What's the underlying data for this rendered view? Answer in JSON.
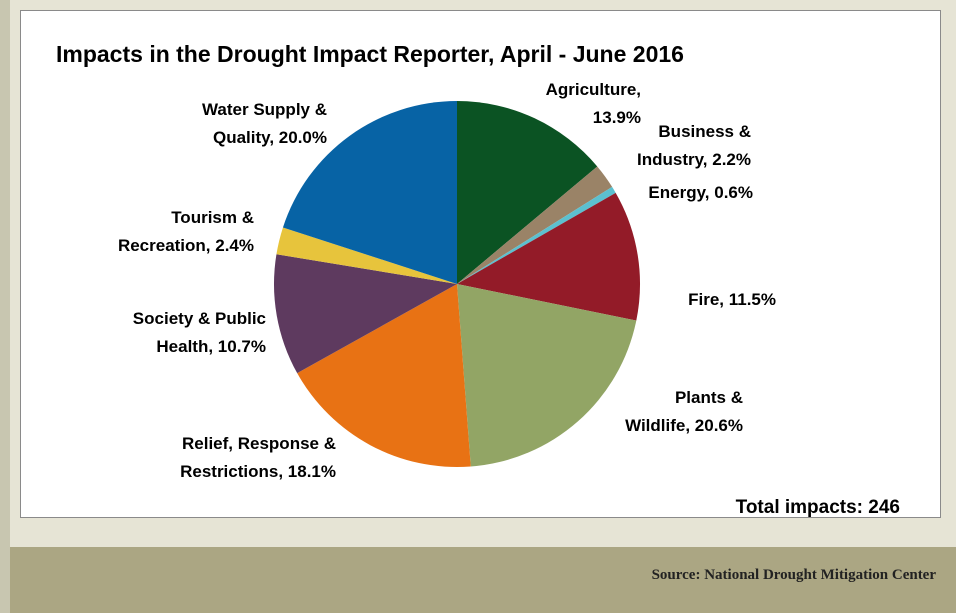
{
  "chart_data": {
    "type": "pie",
    "title": "Impacts in the Drought Impact Reporter, April - June 2016",
    "slices": [
      {
        "label_lines": [
          "Agriculture,",
          "13.9%"
        ],
        "category": "Agriculture",
        "value": 13.9,
        "color": "#0b5323"
      },
      {
        "label_lines": [
          "Business &",
          "Industry, 2.2%"
        ],
        "category": "Business & Industry",
        "value": 2.2,
        "color": "#9a8367"
      },
      {
        "label_lines": [
          "Energy, 0.6%"
        ],
        "category": "Energy",
        "value": 0.6,
        "color": "#5cc0cf"
      },
      {
        "label_lines": [
          "Fire, 11.5%"
        ],
        "category": "Fire",
        "value": 11.5,
        "color": "#931b28"
      },
      {
        "label_lines": [
          "Plants &",
          "Wildlife, 20.6%"
        ],
        "category": "Plants & Wildlife",
        "value": 20.6,
        "color": "#92a565"
      },
      {
        "label_lines": [
          "Relief, Response &",
          "Restrictions, 18.1%"
        ],
        "category": "Relief, Response & Restrictions",
        "value": 18.1,
        "color": "#e87214"
      },
      {
        "label_lines": [
          "Society & Public",
          "Health, 10.7%"
        ],
        "category": "Society & Public Health",
        "value": 10.7,
        "color": "#5e3a5f"
      },
      {
        "label_lines": [
          "Tourism &",
          "Recreation, 2.4%"
        ],
        "category": "Tourism & Recreation",
        "value": 2.4,
        "color": "#e7c43c"
      },
      {
        "label_lines": [
          "Water Supply &",
          "Quality, 20.0%"
        ],
        "category": "Water Supply & Quality",
        "value": 20.0,
        "color": "#0763a5"
      }
    ],
    "start_angle_deg": 0,
    "direction": "clockwise",
    "total_label": "Total impacts: 246"
  },
  "footer": {
    "source": "Source: National Drought Mitigation Center"
  },
  "colors": {
    "page_background": "#e6e4d5",
    "footer_band": "#aba683",
    "chart_background": "#ffffff"
  }
}
